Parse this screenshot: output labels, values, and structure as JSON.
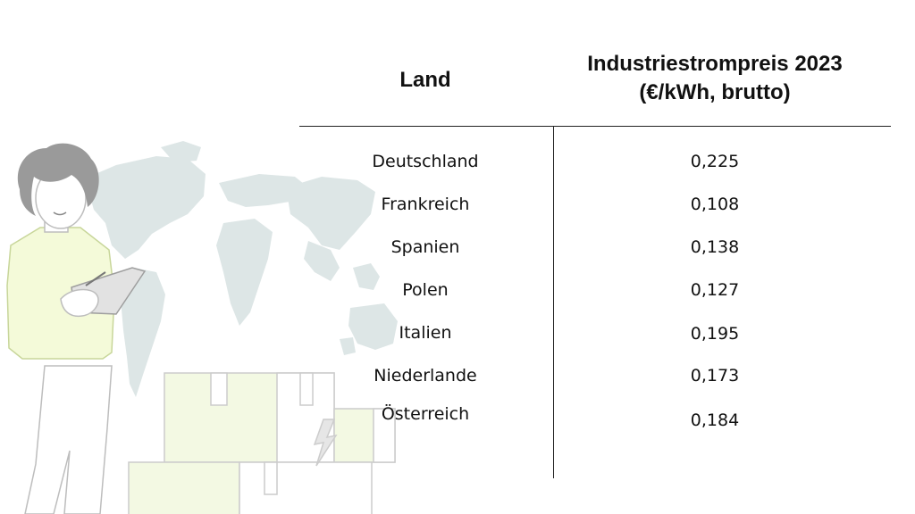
{
  "table": {
    "header": {
      "land": "Land",
      "price_line1": "Industriestrompreis 2023",
      "price_line2": "(€/kWh, brutto)"
    },
    "rows": [
      {
        "land": "Deutschland",
        "price": "0,225"
      },
      {
        "land": "Frankreich",
        "price": "0,108"
      },
      {
        "land": "Spanien",
        "price": "0,138"
      },
      {
        "land": "Polen",
        "price": "0,127"
      },
      {
        "land": "Italien",
        "price": "0,195"
      },
      {
        "land": "Niederlande",
        "price": "0,173"
      },
      {
        "land": "Österreich",
        "price": "0,184"
      }
    ]
  },
  "colors": {
    "map": "#dde6e6",
    "box_fill": "#f3f9e3",
    "figure_fill": "#f4fad9",
    "hair": "#9a9a9a",
    "outline": "#bdbdbd"
  }
}
